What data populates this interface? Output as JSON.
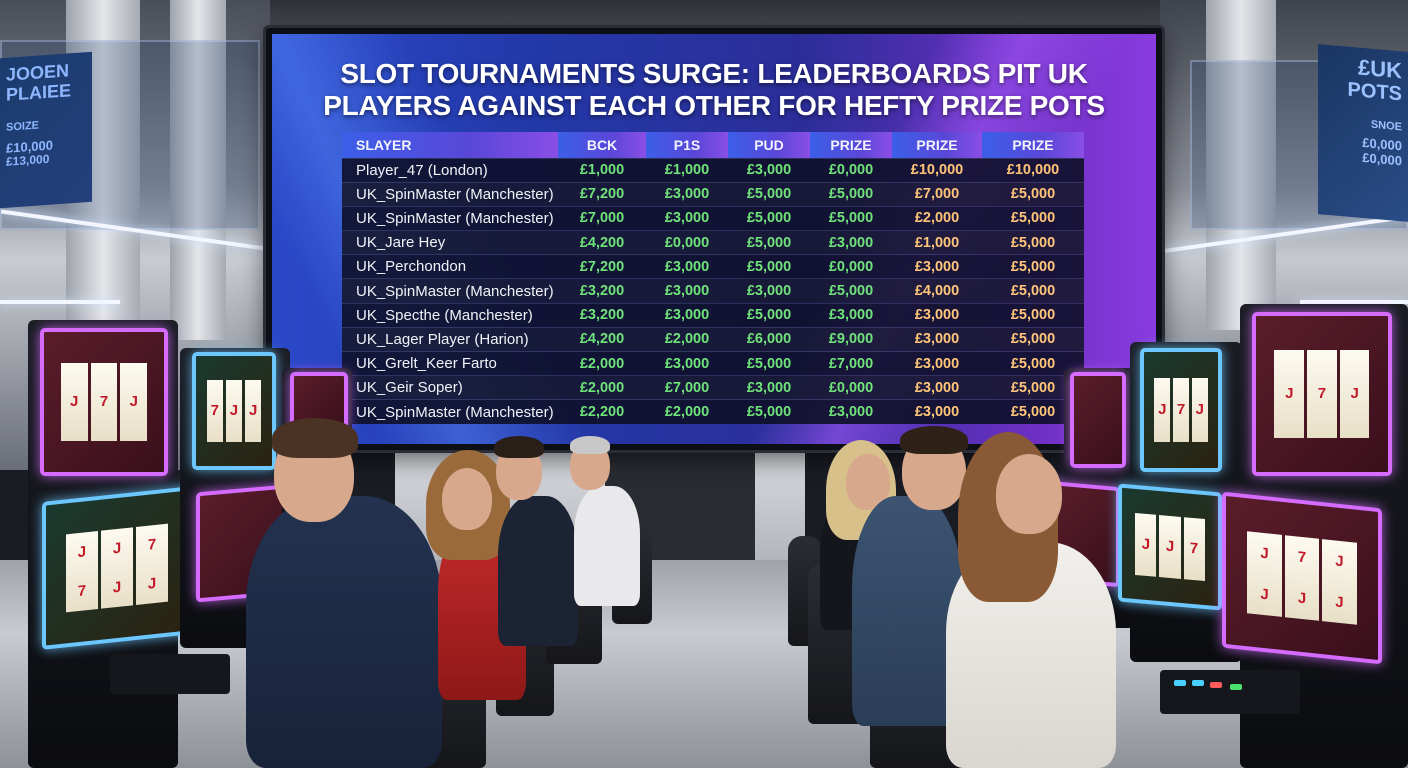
{
  "screen": {
    "headline_line1": "SLOT TOURNAMENTS SURGE: LEADERBOARDS PIT UK",
    "headline_line2": "PLAYERS AGAINST EACH OTHER FOR HEFTY PRIZE POTS",
    "columns": [
      "SLAYER",
      "BCK",
      "P1S",
      "PUD",
      "PRIZE",
      "PRIZE",
      "PRIZE"
    ],
    "rows": [
      {
        "player": "Player_47 (London)",
        "values": [
          "£1,000",
          "£1,000",
          "£3,000",
          "£0,000",
          "£10,000",
          "£10,000"
        ]
      },
      {
        "player": "UK_SpinMaster (Manchester)",
        "values": [
          "£7,200",
          "£3,000",
          "£5,000",
          "£5,000",
          "£7,000",
          "£5,000"
        ]
      },
      {
        "player": "UK_SpinMaster (Manchester)",
        "values": [
          "£7,000",
          "£3,000",
          "£5,000",
          "£5,000",
          "£2,000",
          "£5,000"
        ]
      },
      {
        "player": "UK_Jare Hey",
        "values": [
          "£4,200",
          "£0,000",
          "£5,000",
          "£3,000",
          "£1,000",
          "£5,000"
        ]
      },
      {
        "player": "UK_Perchondon",
        "values": [
          "£7,200",
          "£3,000",
          "£5,000",
          "£0,000",
          "£3,000",
          "£5,000"
        ]
      },
      {
        "player": "UK_SpinMaster (Manchester)",
        "values": [
          "£3,200",
          "£3,000",
          "£3,000",
          "£5,000",
          "£4,000",
          "£5,000"
        ]
      },
      {
        "player": "UK_Specthe (Manchester)",
        "values": [
          "£3,200",
          "£3,000",
          "£5,000",
          "£3,000",
          "£3,000",
          "£5,000"
        ]
      },
      {
        "player": "UK_Lager Player (Harion)",
        "values": [
          "£4,200",
          "£2,000",
          "£6,000",
          "£9,000",
          "£3,000",
          "£5,000"
        ]
      },
      {
        "player": "UK_Grelt_Keer Farto",
        "values": [
          "£2,000",
          "£3,000",
          "£5,000",
          "£7,000",
          "£3,000",
          "£5,000"
        ]
      },
      {
        "player": "UK_Geir Soper)",
        "values": [
          "£2,000",
          "£7,000",
          "£3,000",
          "£0,000",
          "£3,000",
          "£5,000"
        ]
      },
      {
        "player": "UK_SpinMaster (Manchester)",
        "values": [
          "£2,200",
          "£2,000",
          "£5,000",
          "£3,000",
          "£3,000",
          "£5,000"
        ]
      }
    ]
  },
  "wall_sign_left": [
    "JOOEN",
    "PLAIEE",
    "SOIZE",
    "£10,000",
    "£13,000"
  ],
  "wall_sign_right": [
    "£UK",
    "POTS",
    "SNOE",
    "£0,000",
    "£0,000"
  ],
  "reel_symbols": [
    "J",
    "7",
    "J"
  ],
  "colors": {
    "screen_blue": "#2a49c9",
    "screen_purple": "#8a3be0",
    "value_green": "#6fe37a",
    "value_gold": "#ffc67a",
    "machine_glow_pink": "#d56bff",
    "machine_glow_blue": "#6cc7ff"
  }
}
